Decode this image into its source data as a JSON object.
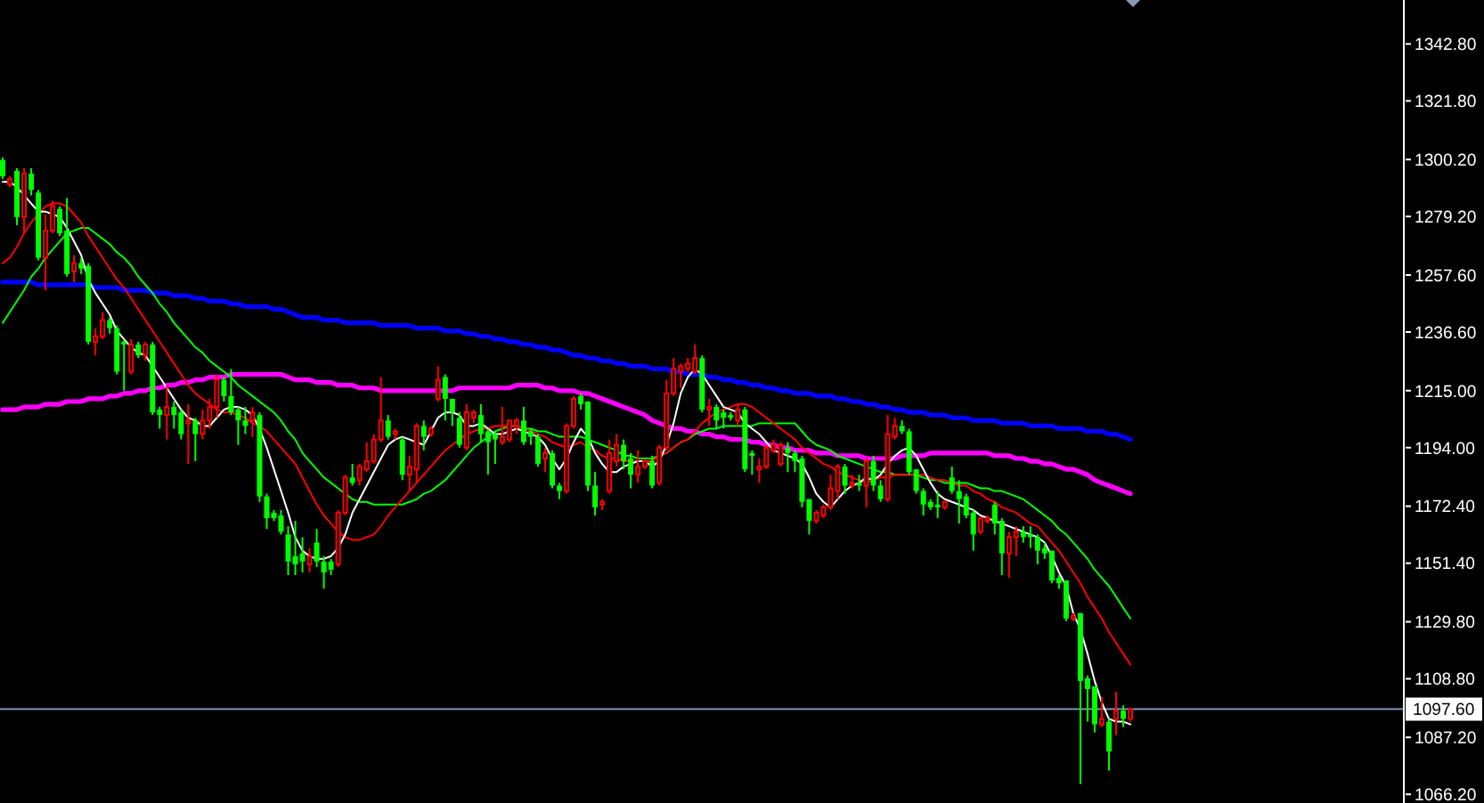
{
  "chart_data": {
    "type": "candlestick",
    "categories": [
      null,
      null,
      null,
      null,
      null,
      null,
      null,
      null,
      null,
      null,
      null,
      null,
      null,
      null,
      null,
      null,
      null,
      null,
      null,
      null,
      null,
      null,
      null,
      null,
      null,
      null,
      null,
      null,
      null,
      null,
      null,
      null,
      null,
      null,
      null,
      null,
      null,
      null,
      null,
      null,
      null,
      null,
      null,
      null,
      null,
      null,
      null,
      null,
      null,
      null,
      null,
      null,
      null,
      null,
      null,
      null,
      null,
      null,
      null,
      null,
      null,
      null,
      null,
      null,
      null,
      null,
      null,
      null,
      null,
      null,
      null,
      null,
      null,
      null,
      null,
      null,
      null,
      null,
      null,
      null,
      null,
      null,
      null,
      null,
      null,
      null,
      null,
      null,
      null,
      null,
      null,
      null,
      null,
      null,
      null,
      null,
      null,
      null,
      null,
      null,
      null,
      null,
      null,
      null,
      null,
      null,
      null,
      null,
      null,
      null,
      null,
      null,
      null,
      null,
      null,
      null,
      null,
      null,
      null,
      null,
      null,
      null,
      null,
      null,
      null,
      null,
      null,
      null,
      null,
      null,
      null,
      null,
      null,
      null,
      null,
      null,
      null,
      null,
      null,
      null,
      null,
      null,
      null,
      null,
      null,
      null,
      null,
      null,
      null,
      null,
      null,
      null,
      null,
      null,
      null,
      null,
      null,
      null,
      null
    ],
    "ohlc": [
      [
        1300,
        1301,
        1293,
        1294
      ],
      [
        1291,
        1294,
        1290,
        1293
      ],
      [
        1296,
        1297,
        1276,
        1279
      ],
      [
        1279,
        1297,
        1273,
        1295
      ],
      [
        1295,
        1297,
        1287,
        1289
      ],
      [
        1288,
        1289,
        1263,
        1264
      ],
      [
        1264,
        1280,
        1252,
        1274
      ],
      [
        1274,
        1285,
        1273,
        1283
      ],
      [
        1282,
        1283,
        1272,
        1273
      ],
      [
        1274,
        1286,
        1257,
        1258
      ],
      [
        1259,
        1265,
        1255,
        1262
      ],
      [
        1262,
        1264,
        1258,
        1260
      ],
      [
        1261,
        1262,
        1232,
        1233
      ],
      [
        1233,
        1238,
        1228,
        1235
      ],
      [
        1235,
        1244,
        1234,
        1241
      ],
      [
        1241,
        1242,
        1236,
        1238
      ],
      [
        1238,
        1239,
        1221,
        1222
      ],
      [
        1233,
        1234,
        1215,
        1232
      ],
      [
        1222,
        1234,
        1221,
        1232
      ],
      [
        1232,
        1233,
        1227,
        1228
      ],
      [
        1228,
        1233,
        1226,
        1232
      ],
      [
        1232,
        1233,
        1206,
        1207
      ],
      [
        1208,
        1209,
        1201,
        1206
      ],
      [
        1206,
        1217,
        1197,
        1209
      ],
      [
        1209,
        1211,
        1201,
        1206
      ],
      [
        1207,
        1208,
        1197,
        1199
      ],
      [
        1203,
        1210,
        1188,
        1204
      ],
      [
        1204,
        1205,
        1189,
        1199
      ],
      [
        1199,
        1208,
        1197,
        1204
      ],
      [
        1204,
        1212,
        1201,
        1209
      ],
      [
        1209,
        1221,
        1205,
        1219
      ],
      [
        1219,
        1220,
        1211,
        1213
      ],
      [
        1213,
        1223,
        1206,
        1207
      ],
      [
        1208,
        1209,
        1195,
        1204
      ],
      [
        1204,
        1209,
        1199,
        1202
      ],
      [
        1204,
        1209,
        1198,
        1207
      ],
      [
        1206,
        1207,
        1174,
        1176
      ],
      [
        1176,
        1177,
        1164,
        1168
      ],
      [
        1170,
        1171,
        1167,
        1168
      ],
      [
        1169,
        1171,
        1162,
        1163
      ],
      [
        1162,
        1165,
        1147,
        1152
      ],
      [
        1154,
        1167,
        1147,
        1151
      ],
      [
        1155,
        1161,
        1148,
        1152
      ],
      [
        1151,
        1157,
        1148,
        1154
      ],
      [
        1159,
        1164,
        1150,
        1152
      ],
      [
        1152,
        1154,
        1142,
        1148
      ],
      [
        1152,
        1153,
        1147,
        1149
      ],
      [
        1151,
        1171,
        1150,
        1170
      ],
      [
        1170,
        1184,
        1169,
        1183
      ],
      [
        1183,
        1188,
        1180,
        1181
      ],
      [
        1182,
        1188,
        1180,
        1187
      ],
      [
        1186,
        1196,
        1185,
        1189
      ],
      [
        1189,
        1199,
        1188,
        1197
      ],
      [
        1197,
        1220,
        1196,
        1204
      ],
      [
        1204,
        1206,
        1197,
        1198
      ],
      [
        1199,
        1201,
        1197,
        1200
      ],
      [
        1197,
        1198,
        1182,
        1184
      ],
      [
        1184,
        1191,
        1178,
        1187
      ],
      [
        1186,
        1203,
        1181,
        1202
      ],
      [
        1202,
        1204,
        1193,
        1198
      ],
      [
        1199,
        1202,
        1198,
        1201
      ],
      [
        1212,
        1224,
        1211,
        1219
      ],
      [
        1220,
        1221,
        1204,
        1212
      ],
      [
        1212,
        1212,
        1202,
        1207
      ],
      [
        1205,
        1207,
        1194,
        1195
      ],
      [
        1194,
        1210,
        1193,
        1207
      ],
      [
        1205,
        1208,
        1203,
        1207
      ],
      [
        1206,
        1210,
        1196,
        1199
      ],
      [
        1200,
        1201,
        1184,
        1196
      ],
      [
        1199,
        1200,
        1188,
        1197
      ],
      [
        1196,
        1209,
        1195,
        1198
      ],
      [
        1197,
        1204,
        1196,
        1204
      ],
      [
        1202,
        1205,
        1199,
        1204
      ],
      [
        1204,
        1209,
        1195,
        1196
      ],
      [
        1200,
        1201,
        1195,
        1198
      ],
      [
        1198,
        1199,
        1187,
        1188
      ],
      [
        1190,
        1194,
        1185,
        1192
      ],
      [
        1192,
        1193,
        1179,
        1180
      ],
      [
        1180,
        1181,
        1175,
        1178
      ],
      [
        1178,
        1203,
        1177,
        1202
      ],
      [
        1202,
        1213,
        1201,
        1212
      ],
      [
        1213,
        1214,
        1208,
        1210
      ],
      [
        1211,
        1211,
        1178,
        1180
      ],
      [
        1180,
        1185,
        1169,
        1172
      ],
      [
        1173,
        1175,
        1171,
        1174
      ],
      [
        1178,
        1197,
        1177,
        1192
      ],
      [
        1189,
        1199,
        1187,
        1195
      ],
      [
        1195,
        1197,
        1186,
        1189
      ],
      [
        1190,
        1192,
        1179,
        1184
      ],
      [
        1184,
        1193,
        1181,
        1187
      ],
      [
        1187,
        1190,
        1186,
        1189
      ],
      [
        1189,
        1191,
        1179,
        1180
      ],
      [
        1181,
        1195,
        1180,
        1194
      ],
      [
        1194,
        1219,
        1193,
        1214
      ],
      [
        1214,
        1227,
        1213,
        1223
      ],
      [
        1222,
        1225,
        1216,
        1224
      ],
      [
        1223,
        1227,
        1222,
        1225
      ],
      [
        1222,
        1232,
        1221,
        1227
      ],
      [
        1227,
        1228,
        1207,
        1208
      ],
      [
        1208,
        1212,
        1202,
        1209
      ],
      [
        1209,
        1210,
        1201,
        1204
      ],
      [
        1207,
        1208,
        1201,
        1205
      ],
      [
        1206,
        1207,
        1204,
        1205
      ],
      [
        1204,
        1210,
        1202,
        1208
      ],
      [
        1208,
        1209,
        1185,
        1186
      ],
      [
        1192,
        1193,
        1184,
        1191
      ],
      [
        1186,
        1190,
        1181,
        1187
      ],
      [
        1187,
        1195,
        1186,
        1194
      ],
      [
        1193,
        1197,
        1192,
        1195
      ],
      [
        1188,
        1196,
        1187,
        1195
      ],
      [
        1194,
        1196,
        1185,
        1192
      ],
      [
        1192,
        1193,
        1185,
        1189
      ],
      [
        1190,
        1191,
        1172,
        1174
      ],
      [
        1175,
        1175,
        1162,
        1167
      ],
      [
        1167,
        1171,
        1166,
        1170
      ],
      [
        1169,
        1173,
        1168,
        1172
      ],
      [
        1172,
        1184,
        1171,
        1179
      ],
      [
        1178,
        1188,
        1175,
        1187
      ],
      [
        1187,
        1188,
        1177,
        1180
      ],
      [
        1180,
        1184,
        1179,
        1181
      ],
      [
        1181,
        1184,
        1178,
        1180
      ],
      [
        1180,
        1190,
        1172,
        1189
      ],
      [
        1189,
        1191,
        1178,
        1180
      ],
      [
        1180,
        1182,
        1174,
        1175
      ],
      [
        1175,
        1206,
        1174,
        1199
      ],
      [
        1198,
        1205,
        1197,
        1202
      ],
      [
        1202,
        1204,
        1199,
        1200
      ],
      [
        1200,
        1201,
        1184,
        1185
      ],
      [
        1186,
        1186,
        1177,
        1178
      ],
      [
        1178,
        1179,
        1169,
        1173
      ],
      [
        1174,
        1175,
        1171,
        1172
      ],
      [
        1173,
        1178,
        1168,
        1172
      ],
      [
        1172,
        1174,
        1171,
        1174
      ],
      [
        1183,
        1187,
        1177,
        1178
      ],
      [
        1178,
        1182,
        1166,
        1175
      ],
      [
        1176,
        1177,
        1168,
        1169
      ],
      [
        1170,
        1171,
        1156,
        1162
      ],
      [
        1163,
        1168,
        1162,
        1168
      ],
      [
        1167,
        1169,
        1166,
        1168
      ],
      [
        1173,
        1174,
        1162,
        1166
      ],
      [
        1167,
        1168,
        1147,
        1155
      ],
      [
        1155,
        1163,
        1146,
        1161
      ],
      [
        1161,
        1165,
        1154,
        1163
      ],
      [
        1163,
        1165,
        1159,
        1161
      ],
      [
        1162,
        1165,
        1157,
        1161
      ],
      [
        1161,
        1162,
        1151,
        1156
      ],
      [
        1157,
        1159,
        1153,
        1155
      ],
      [
        1156,
        1156,
        1144,
        1145
      ],
      [
        1146,
        1147,
        1142,
        1144
      ],
      [
        1145,
        1145,
        1130,
        1131
      ],
      [
        1131,
        1133,
        1130,
        1132
      ],
      [
        1133,
        1133,
        1070,
        1108
      ],
      [
        1109,
        1110,
        1093,
        1105
      ],
      [
        1106,
        1106,
        1089,
        1092
      ],
      [
        1092,
        1102,
        1091,
        1094
      ],
      [
        1093,
        1094,
        1075,
        1082
      ],
      [
        1094,
        1104,
        1088,
        1097
      ],
      [
        1097,
        1099,
        1091,
        1094
      ],
      [
        1094,
        1098,
        1093,
        1097.6
      ]
    ],
    "colors": [
      "#00ff00",
      "#ff0000",
      "#00ff00",
      "#ff0000",
      "#00ff00",
      "#00ff00",
      "#ff0000",
      "#ff0000",
      "#00ff00",
      "#00ff00",
      "#ff0000",
      "#00ff00",
      "#00ff00",
      "#ff0000",
      "#ff0000",
      "#00ff00",
      "#00ff00",
      "#00ff00",
      "#ff0000",
      "#00ff00",
      "#ff0000",
      "#00ff00",
      "#00ff00",
      "#ff0000",
      "#00ff00",
      "#00ff00",
      "#ff0000",
      "#00ff00",
      "#ff0000",
      "#ff0000",
      "#ff0000",
      "#00ff00",
      "#00ff00",
      "#00ff00",
      "#00ff00",
      "#ff0000",
      "#00ff00",
      "#00ff00",
      "#00ff00",
      "#00ff00",
      "#00ff00",
      "#00ff00",
      "#00ff00",
      "#ff0000",
      "#00ff00",
      "#00ff00",
      "#00ff00",
      "#ff0000",
      "#ff0000",
      "#00ff00",
      "#ff0000",
      "#ff0000",
      "#ff0000",
      "#ff0000",
      "#00ff00",
      "#ff0000",
      "#00ff00",
      "#ff0000",
      "#ff0000",
      "#00ff00",
      "#ff0000",
      "#ff0000",
      "#00ff00",
      "#00ff00",
      "#00ff00",
      "#ff0000",
      "#ff0000",
      "#00ff00",
      "#00ff00",
      "#00ff00",
      "#ff0000",
      "#ff0000",
      "#ff0000",
      "#00ff00",
      "#00ff00",
      "#00ff00",
      "#ff0000",
      "#00ff00",
      "#00ff00",
      "#ff0000",
      "#ff0000",
      "#00ff00",
      "#00ff00",
      "#00ff00",
      "#ff0000",
      "#ff0000",
      "#ff0000",
      "#00ff00",
      "#00ff00",
      "#ff0000",
      "#ff0000",
      "#00ff00",
      "#ff0000",
      "#ff0000",
      "#ff0000",
      "#ff0000",
      "#ff0000",
      "#ff0000",
      "#00ff00",
      "#ff0000",
      "#00ff00",
      "#00ff00",
      "#00ff00",
      "#ff0000",
      "#00ff00",
      "#00ff00",
      "#ff0000",
      "#ff0000",
      "#ff0000",
      "#ff0000",
      "#00ff00",
      "#00ff00",
      "#00ff00",
      "#00ff00",
      "#ff0000",
      "#ff0000",
      "#ff0000",
      "#ff0000",
      "#00ff00",
      "#ff0000",
      "#00ff00",
      "#ff0000",
      "#00ff00",
      "#00ff00",
      "#ff0000",
      "#ff0000",
      "#00ff00",
      "#00ff00",
      "#00ff00",
      "#00ff00",
      "#00ff00",
      "#00ff00",
      "#ff0000",
      "#00ff00",
      "#00ff00",
      "#00ff00",
      "#00ff00",
      "#ff0000",
      "#ff0000",
      "#00ff00",
      "#00ff00",
      "#ff0000",
      "#ff0000",
      "#00ff00",
      "#00ff00",
      "#00ff00",
      "#00ff00",
      "#00ff00",
      "#00ff00",
      "#00ff00",
      "#ff0000",
      "#00ff00",
      "#00ff00",
      "#00ff00",
      "#ff0000",
      "#00ff00",
      "#ff0000",
      "#00ff00",
      "#ff0000"
    ],
    "series": [
      {
        "type": "line",
        "color": "#0000ff",
        "values": [
          1255,
          1255,
          1255,
          1255,
          1255,
          1254,
          1254,
          1254,
          1254,
          1254,
          1254,
          1254,
          1254,
          1253,
          1253,
          1253,
          1253,
          1252,
          1252,
          1252,
          1252,
          1251,
          1251,
          1251,
          1250,
          1250,
          1250,
          1249,
          1249,
          1248,
          1248,
          1248,
          1247,
          1247,
          1246,
          1246,
          1246,
          1246,
          1245,
          1245,
          1244,
          1243,
          1242,
          1242,
          1242,
          1241,
          1241,
          1241,
          1240,
          1240,
          1240,
          1240,
          1240,
          1239,
          1239,
          1239,
          1239,
          1239,
          1238,
          1238,
          1238,
          1238,
          1237,
          1237,
          1237,
          1236,
          1236,
          1235,
          1235,
          1234,
          1234,
          1233,
          1233,
          1232,
          1232,
          1231,
          1231,
          1230,
          1230,
          1229,
          1228,
          1228,
          1227,
          1227,
          1226,
          1226,
          1225,
          1225,
          1224,
          1224,
          1224,
          1223,
          1223,
          1223,
          1222,
          1222,
          1221,
          1221,
          1221,
          1220,
          1220,
          1219,
          1219,
          1218,
          1218,
          1217,
          1217,
          1216,
          1216,
          1215,
          1215,
          1214,
          1214,
          1214,
          1213,
          1213,
          1213,
          1212,
          1212,
          1211,
          1211,
          1210,
          1210,
          1209,
          1209,
          1208,
          1208,
          1207,
          1207,
          1207,
          1206,
          1206,
          1206,
          1205,
          1205,
          1205,
          1204,
          1204,
          1204,
          1204,
          1203,
          1203,
          1203,
          1203,
          1202,
          1202,
          1202,
          1202,
          1201,
          1201,
          1201,
          1201,
          1200,
          1200,
          1200,
          1199,
          1199,
          1198,
          1197
        ]
      },
      {
        "type": "line",
        "color": "#ff00ff",
        "values": [
          1208,
          1208,
          1208,
          1209,
          1209,
          1209,
          1210,
          1210,
          1210,
          1211,
          1211,
          1211,
          1212,
          1212,
          1212,
          1213,
          1213,
          1214,
          1214,
          1215,
          1215,
          1216,
          1216,
          1217,
          1217,
          1218,
          1218,
          1219,
          1219,
          1220,
          1220,
          1220,
          1221,
          1221,
          1221,
          1221,
          1221,
          1221,
          1221,
          1221,
          1220,
          1219,
          1219,
          1219,
          1218,
          1218,
          1218,
          1217,
          1217,
          1217,
          1216,
          1216,
          1216,
          1215,
          1215,
          1215,
          1215,
          1215,
          1215,
          1215,
          1215,
          1215,
          1215,
          1215,
          1216,
          1216,
          1216,
          1216,
          1216,
          1216,
          1216,
          1216,
          1217,
          1217,
          1217,
          1217,
          1216,
          1216,
          1215,
          1215,
          1215,
          1214,
          1214,
          1213,
          1212,
          1211,
          1210,
          1209,
          1208,
          1207,
          1206,
          1204,
          1203,
          1202,
          1201,
          1201,
          1200,
          1200,
          1199,
          1199,
          1198,
          1198,
          1197,
          1197,
          1197,
          1196,
          1196,
          1195,
          1195,
          1194,
          1194,
          1193,
          1193,
          1193,
          1192,
          1192,
          1192,
          1191,
          1191,
          1191,
          1191,
          1190,
          1190,
          1190,
          1190,
          1190,
          1191,
          1191,
          1191,
          1191,
          1192,
          1192,
          1192,
          1192,
          1192,
          1192,
          1192,
          1192,
          1192,
          1191,
          1191,
          1191,
          1190,
          1190,
          1189,
          1189,
          1188,
          1188,
          1187,
          1186,
          1186,
          1185,
          1184,
          1182,
          1181,
          1180,
          1179,
          1178,
          1177
        ]
      },
      {
        "type": "line",
        "color": "#00ff00",
        "values": [
          1240,
          1244,
          1248,
          1252,
          1257,
          1260,
          1264,
          1267,
          1270,
          1273,
          1274,
          1275,
          1275,
          1273,
          1271,
          1269,
          1266,
          1264,
          1261,
          1257,
          1254,
          1251,
          1247,
          1244,
          1240,
          1237,
          1234,
          1231,
          1229,
          1226,
          1224,
          1222,
          1220,
          1217,
          1215,
          1213,
          1211,
          1209,
          1207,
          1204,
          1200,
          1197,
          1192,
          1189,
          1186,
          1183,
          1181,
          1179,
          1177,
          1175,
          1174,
          1174,
          1173,
          1173,
          1173,
          1173,
          1173,
          1174,
          1175,
          1177,
          1178,
          1180,
          1182,
          1185,
          1188,
          1191,
          1194,
          1196,
          1198,
          1200,
          1201,
          1202,
          1202,
          1201,
          1201,
          1200,
          1200,
          1199,
          1198,
          1198,
          1198,
          1198,
          1197,
          1196,
          1195,
          1194,
          1193,
          1191,
          1191,
          1190,
          1190,
          1190,
          1191,
          1192,
          1194,
          1196,
          1197,
          1199,
          1200,
          1201,
          1201,
          1202,
          1202,
          1202,
          1202,
          1202,
          1203,
          1203,
          1203,
          1203,
          1203,
          1203,
          1200,
          1197,
          1195,
          1194,
          1193,
          1191,
          1190,
          1189,
          1188,
          1187,
          1186,
          1185,
          1185,
          1184,
          1184,
          1184,
          1184,
          1183,
          1182,
          1182,
          1181,
          1181,
          1181,
          1181,
          1180,
          1179,
          1179,
          1178,
          1178,
          1177,
          1176,
          1175,
          1173,
          1171,
          1169,
          1167,
          1164,
          1162,
          1159,
          1156,
          1153,
          1149,
          1146,
          1143,
          1139,
          1135,
          1131
        ]
      },
      {
        "type": "line",
        "color": "#ff0000",
        "values": [
          1262,
          1264,
          1268,
          1273,
          1277,
          1280,
          1283,
          1284,
          1284,
          1283,
          1280,
          1277,
          1272,
          1268,
          1264,
          1260,
          1256,
          1253,
          1249,
          1245,
          1241,
          1237,
          1233,
          1229,
          1225,
          1221,
          1217,
          1214,
          1212,
          1210,
          1208,
          1207,
          1207,
          1206,
          1205,
          1203,
          1202,
          1200,
          1197,
          1194,
          1191,
          1188,
          1183,
          1178,
          1173,
          1169,
          1166,
          1163,
          1161,
          1160,
          1160,
          1161,
          1162,
          1165,
          1169,
          1172,
          1175,
          1178,
          1181,
          1184,
          1187,
          1190,
          1193,
          1195,
          1197,
          1199,
          1200,
          1201,
          1201,
          1202,
          1202,
          1202,
          1202,
          1201,
          1200,
          1199,
          1198,
          1196,
          1195,
          1194,
          1195,
          1196,
          1194,
          1193,
          1191,
          1190,
          1190,
          1189,
          1189,
          1189,
          1189,
          1189,
          1191,
          1192,
          1194,
          1196,
          1197,
          1200,
          1203,
          1205,
          1207,
          1208,
          1209,
          1210,
          1210,
          1209,
          1207,
          1205,
          1203,
          1201,
          1199,
          1197,
          1194,
          1192,
          1190,
          1188,
          1187,
          1185,
          1184,
          1183,
          1182,
          1181,
          1182,
          1183,
          1183,
          1184,
          1184,
          1184,
          1184,
          1184,
          1183,
          1182,
          1182,
          1181,
          1180,
          1180,
          1178,
          1177,
          1175,
          1174,
          1172,
          1171,
          1170,
          1168,
          1166,
          1165,
          1162,
          1159,
          1156,
          1152,
          1148,
          1144,
          1139,
          1135,
          1131,
          1126,
          1122,
          1118,
          1114
        ]
      },
      {
        "type": "line",
        "color": "#ffffff",
        "values": [
          1292,
          1292,
          1290,
          1287,
          1284,
          1281,
          1281,
          1280,
          1279,
          1275,
          1270,
          1265,
          1256,
          1251,
          1247,
          1243,
          1237,
          1234,
          1231,
          1229,
          1228,
          1224,
          1220,
          1216,
          1212,
          1208,
          1205,
          1204,
          1202,
          1202,
          1205,
          1208,
          1209,
          1209,
          1208,
          1206,
          1201,
          1194,
          1186,
          1178,
          1170,
          1161,
          1156,
          1154,
          1153,
          1153,
          1154,
          1157,
          1162,
          1170,
          1175,
          1180,
          1185,
          1190,
          1195,
          1197,
          1198,
          1197,
          1196,
          1195,
          1200,
          1205,
          1207,
          1207,
          1206,
          1202,
          1202,
          1203,
          1201,
          1199,
          1199,
          1200,
          1201,
          1200,
          1199,
          1198,
          1195,
          1190,
          1186,
          1190,
          1196,
          1201,
          1198,
          1192,
          1188,
          1185,
          1185,
          1187,
          1188,
          1189,
          1189,
          1187,
          1189,
          1195,
          1203,
          1214,
          1220,
          1223,
          1221,
          1217,
          1213,
          1209,
          1208,
          1207,
          1203,
          1201,
          1199,
          1196,
          1193,
          1192,
          1191,
          1190,
          1188,
          1183,
          1177,
          1174,
          1172,
          1175,
          1178,
          1180,
          1181,
          1183,
          1182,
          1184,
          1188,
          1191,
          1193,
          1194,
          1191,
          1186,
          1181,
          1177,
          1175,
          1174,
          1173,
          1172,
          1171,
          1169,
          1168,
          1167,
          1166,
          1165,
          1164,
          1163,
          1162,
          1161,
          1159,
          1154,
          1148,
          1143,
          1133,
          1127,
          1118,
          1108,
          1100,
          1094,
          1093,
          1093,
          1092
        ]
      }
    ],
    "ylim": [
      1063,
      1359
    ],
    "yticks": [
      {
        "value": 1342.8,
        "label": "1342.80"
      },
      {
        "value": 1321.8,
        "label": "1321.80"
      },
      {
        "value": 1300.2,
        "label": "1300.20"
      },
      {
        "value": 1279.2,
        "label": "1279.20"
      },
      {
        "value": 1257.6,
        "label": "1257.60"
      },
      {
        "value": 1236.6,
        "label": "1236.60"
      },
      {
        "value": 1215,
        "label": "1215.00"
      },
      {
        "value": 1194,
        "label": "1194.00"
      },
      {
        "value": 1172.4,
        "label": "1172.40"
      },
      {
        "value": 1151.4,
        "label": "1151.40"
      },
      {
        "value": 1129.8,
        "label": "1129.80"
      },
      {
        "value": 1108.8,
        "label": "1108.80"
      },
      {
        "value": 1087.2,
        "label": "1087.20"
      },
      {
        "value": 1066.2,
        "label": "1066.20"
      }
    ],
    "tick_labels": "y",
    "ref_lines": [
      {
        "axis": "y",
        "value": 1097.6,
        "label": "1097.60",
        "color": "#7f95b8"
      }
    ]
  }
}
